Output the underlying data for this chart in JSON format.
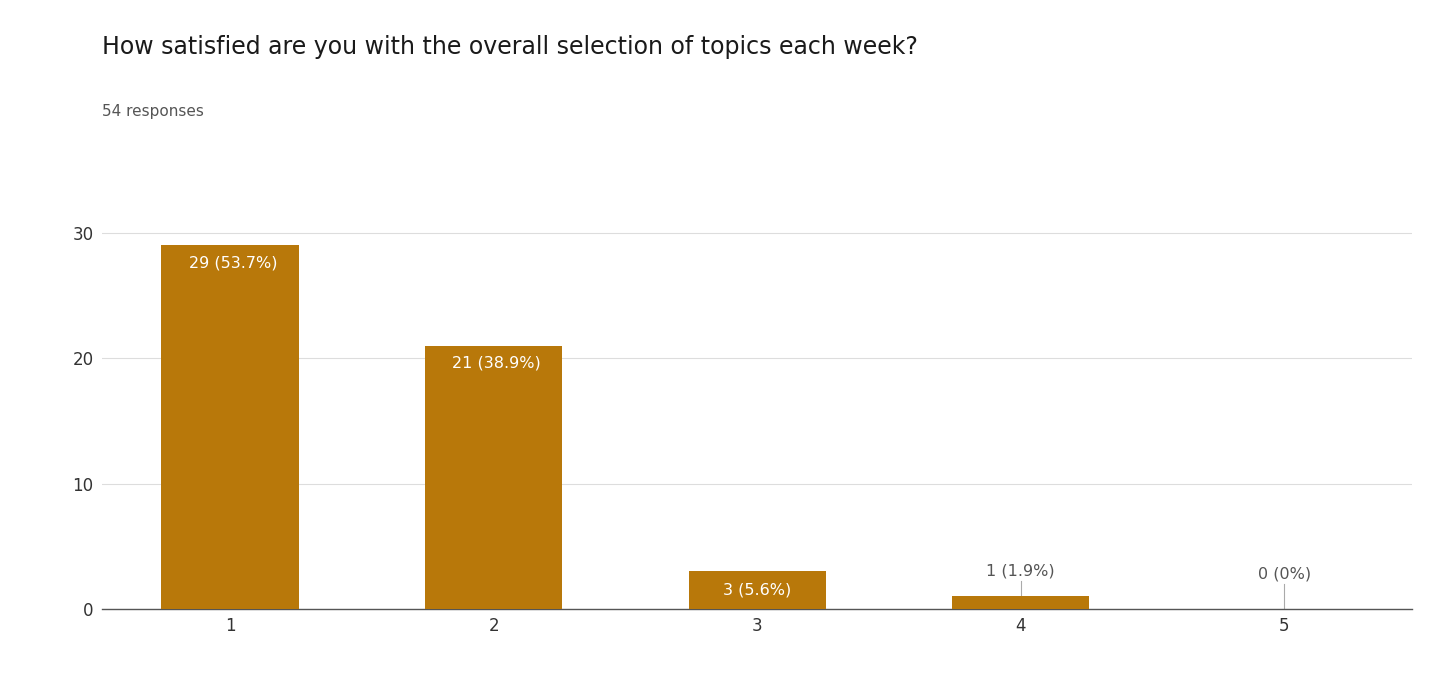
{
  "title": "How satisfied are you with the overall selection of topics each week?",
  "subtitle": "54 responses",
  "categories": [
    1,
    2,
    3,
    4,
    5
  ],
  "values": [
    29,
    21,
    3,
    1,
    0
  ],
  "labels": [
    "29 (53.7%)",
    "21 (38.9%)",
    "3 (5.6%)",
    "1 (1.9%)",
    "0 (0%)"
  ],
  "bar_color": "#B8780A",
  "label_color_inside": "#FFFFFF",
  "label_color_outside": "#555555",
  "background_color": "#FFFFFF",
  "ylim": [
    0,
    32
  ],
  "yticks": [
    0,
    10,
    20,
    30
  ],
  "title_fontsize": 17,
  "subtitle_fontsize": 11,
  "tick_fontsize": 12,
  "label_fontsize": 11.5,
  "grid_color": "#DDDDDD",
  "bar_width": 0.52
}
